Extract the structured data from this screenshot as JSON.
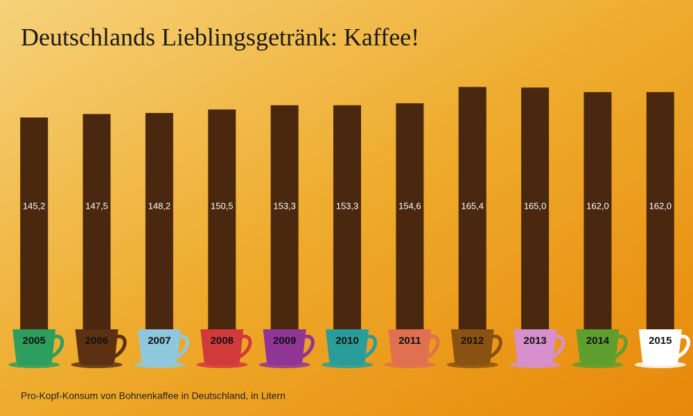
{
  "chart_data": {
    "type": "bar",
    "title": "Deutschlands Lieblingsgetränk: Kaffee!",
    "subtitle": "Pro-Kopf-Konsum von Bohnenkaffee in Deutschland, in Litern",
    "categories": [
      "2005",
      "2006",
      "2007",
      "2008",
      "2009",
      "2010",
      "2011",
      "2012",
      "2013",
      "2014",
      "2015"
    ],
    "values": [
      145.2,
      147.5,
      148.2,
      150.5,
      153.3,
      153.3,
      154.6,
      165.4,
      165.0,
      162.0,
      162.0
    ],
    "value_labels": [
      "145,2",
      "147,5",
      "148,2",
      "150,5",
      "153,3",
      "153,3",
      "154,6",
      "165,4",
      "165,0",
      "162,0",
      "162,0"
    ],
    "color": "#4a2810",
    "cup_colors": [
      "#2e9e5e",
      "#5c3113",
      "#8fc8dc",
      "#d13a3a",
      "#8f3596",
      "#2a9d9a",
      "#e07050",
      "#8a5212",
      "#d690cc",
      "#5e9e2e",
      "#ffffff"
    ],
    "ylim": [
      0,
      200
    ]
  }
}
